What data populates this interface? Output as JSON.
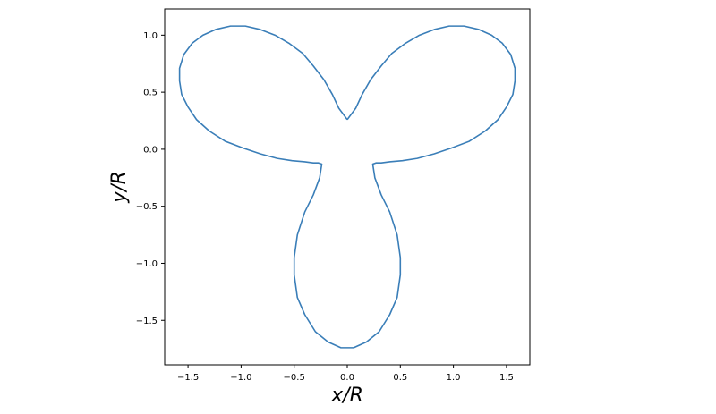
{
  "chart_data": {
    "type": "line",
    "title": "",
    "xlabel": "x/R",
    "ylabel": "y/R",
    "xlim": [
      -1.72,
      1.72
    ],
    "ylim": [
      -1.89,
      1.23
    ],
    "xticks": [
      -1.5,
      -1.0,
      -0.5,
      0.0,
      0.5,
      1.0,
      1.5
    ],
    "xtick_labels": [
      "−1.5",
      "−1.0",
      "−0.5",
      "0.0",
      "0.5",
      "1.0",
      "1.5"
    ],
    "yticks": [
      -1.5,
      -1.0,
      -0.5,
      0.0,
      0.5,
      1.0
    ],
    "ytick_labels": [
      "−1.5",
      "−1.0",
      "−0.5",
      "0.0",
      "0.5",
      "1.0"
    ],
    "grid": false,
    "series": [
      {
        "color": "#3a7eb8",
        "x": [
          0.0,
          0.08,
          0.14,
          0.22,
          0.32,
          0.42,
          0.55,
          0.68,
          0.82,
          0.96,
          1.1,
          1.24,
          1.36,
          1.46,
          1.54,
          1.58,
          1.58,
          1.56,
          1.5,
          1.42,
          1.3,
          1.15,
          0.98,
          0.82,
          0.66,
          0.52,
          0.4,
          0.32,
          0.27,
          0.24,
          0.26,
          0.32,
          0.4,
          0.47,
          0.5,
          0.5,
          0.47,
          0.4,
          0.3,
          0.18,
          0.06,
          0.0,
          -0.06,
          -0.18,
          -0.3,
          -0.4,
          -0.47,
          -0.5,
          -0.5,
          -0.47,
          -0.4,
          -0.32,
          -0.26,
          -0.24,
          -0.27,
          -0.32,
          -0.4,
          -0.52,
          -0.66,
          -0.82,
          -0.98,
          -1.15,
          -1.3,
          -1.42,
          -1.5,
          -1.56,
          -1.58,
          -1.58,
          -1.54,
          -1.46,
          -1.36,
          -1.24,
          -1.1,
          -0.96,
          -0.82,
          -0.68,
          -0.55,
          -0.42,
          -0.32,
          -0.22,
          -0.14,
          -0.08,
          0.0
        ],
        "y": [
          0.26,
          0.36,
          0.48,
          0.61,
          0.73,
          0.84,
          0.93,
          1.0,
          1.05,
          1.08,
          1.08,
          1.05,
          1.0,
          0.93,
          0.83,
          0.71,
          0.6,
          0.48,
          0.37,
          0.26,
          0.16,
          0.07,
          0.01,
          -0.04,
          -0.08,
          -0.1,
          -0.11,
          -0.12,
          -0.12,
          -0.13,
          -0.25,
          -0.4,
          -0.55,
          -0.75,
          -0.95,
          -1.1,
          -1.3,
          -1.45,
          -1.6,
          -1.69,
          -1.74,
          -1.74,
          -1.74,
          -1.69,
          -1.6,
          -1.45,
          -1.3,
          -1.1,
          -0.95,
          -0.75,
          -0.55,
          -0.4,
          -0.25,
          -0.13,
          -0.12,
          -0.12,
          -0.11,
          -0.1,
          -0.08,
          -0.04,
          0.01,
          0.07,
          0.16,
          0.26,
          0.37,
          0.48,
          0.6,
          0.71,
          0.83,
          0.93,
          1.0,
          1.05,
          1.08,
          1.08,
          1.05,
          1.0,
          0.93,
          0.84,
          0.73,
          0.61,
          0.48,
          0.36,
          0.26
        ]
      }
    ]
  }
}
